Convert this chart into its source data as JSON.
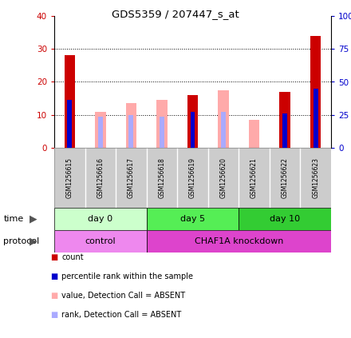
{
  "title": "GDS5359 / 207447_s_at",
  "samples": [
    "GSM1256615",
    "GSM1256616",
    "GSM1256617",
    "GSM1256618",
    "GSM1256619",
    "GSM1256620",
    "GSM1256621",
    "GSM1256622",
    "GSM1256623"
  ],
  "count_values": [
    28,
    0,
    0,
    0,
    16,
    0,
    0,
    17,
    34
  ],
  "rank_values": [
    14.5,
    0,
    0,
    0,
    11,
    0,
    0,
    10.5,
    18
  ],
  "absent_value_values": [
    0,
    11,
    13.5,
    14.5,
    0,
    17.5,
    8.5,
    0,
    0
  ],
  "absent_rank_values": [
    0,
    9.5,
    10,
    9.5,
    0,
    11,
    0,
    0,
    0
  ],
  "ylim": [
    0,
    40
  ],
  "ylim_right": [
    0,
    100
  ],
  "yticks_left": [
    0,
    10,
    20,
    30,
    40
  ],
  "yticks_right": [
    0,
    25,
    50,
    75,
    100
  ],
  "ytick_labels_right": [
    "0",
    "25",
    "50",
    "75",
    "100%"
  ],
  "color_count": "#cc0000",
  "color_rank": "#0000cc",
  "color_absent_value": "#ffaaaa",
  "color_absent_rank": "#aaaaff",
  "bar_width": 0.35,
  "rank_bar_width": 0.15,
  "color_left_axis": "#cc0000",
  "color_right_axis": "#0000cc",
  "time_defs": [
    [
      "day 0",
      0,
      3,
      "#ccffcc"
    ],
    [
      "day 5",
      3,
      6,
      "#55ee55"
    ],
    [
      "day 10",
      6,
      9,
      "#33cc33"
    ]
  ],
  "proto_defs": [
    [
      "control",
      0,
      3,
      "#ee88ee"
    ],
    [
      "CHAF1A knockdown",
      3,
      9,
      "#dd44cc"
    ]
  ],
  "tick_bg_color": "#cccccc",
  "legend_items": [
    [
      "#cc0000",
      "count"
    ],
    [
      "#0000cc",
      "percentile rank within the sample"
    ],
    [
      "#ffaaaa",
      "value, Detection Call = ABSENT"
    ],
    [
      "#aaaaff",
      "rank, Detection Call = ABSENT"
    ]
  ]
}
